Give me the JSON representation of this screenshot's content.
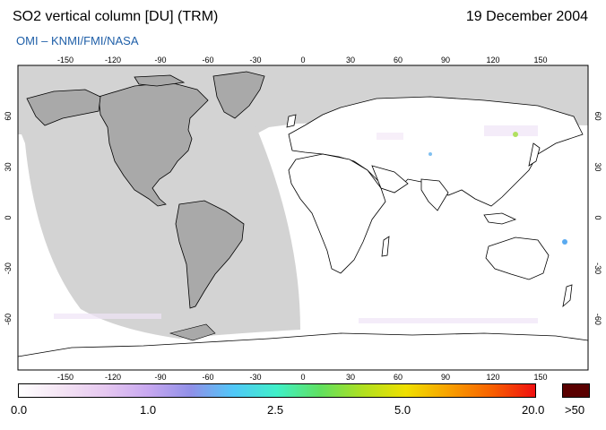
{
  "header": {
    "title": "SO2 vertical column [DU] (TRM)",
    "date": "19 December 2004",
    "credit": "OMI  –  KNMI/FMI/NASA"
  },
  "map": {
    "projection": "equirectangular",
    "lon_ticks_top": [
      "-150",
      "-120",
      "-90",
      "-60",
      "-30",
      "0",
      "30",
      "60",
      "90",
      "120",
      "150"
    ],
    "lon_ticks_bottom": [
      "-150",
      "-120",
      "-90",
      "-60",
      "-30",
      "0",
      "30",
      "60",
      "90",
      "120",
      "150"
    ],
    "lat_ticks_left": [
      "60",
      "30",
      "0",
      "-30",
      "-60"
    ],
    "lat_ticks_right": [
      "60",
      "30",
      "0",
      "-30",
      "-60"
    ],
    "colors": {
      "no_data": "#d3d3d3",
      "land_no_data": "#a9a9a9",
      "coastline": "#000000"
    }
  },
  "colorbar": {
    "labels": [
      "0.0",
      "1.0",
      "2.5",
      "5.0",
      "20.0"
    ],
    "over_label": ">50",
    "over_color": "#5a0000",
    "gradient_colors": [
      "#ffffff",
      "#f4e4f4",
      "#e6c8f0",
      "#c8a8f0",
      "#9090e8",
      "#50c8f8",
      "#40f0c8",
      "#60e060",
      "#b0e020",
      "#f0e000",
      "#f8a000",
      "#f86000",
      "#f01010"
    ]
  }
}
